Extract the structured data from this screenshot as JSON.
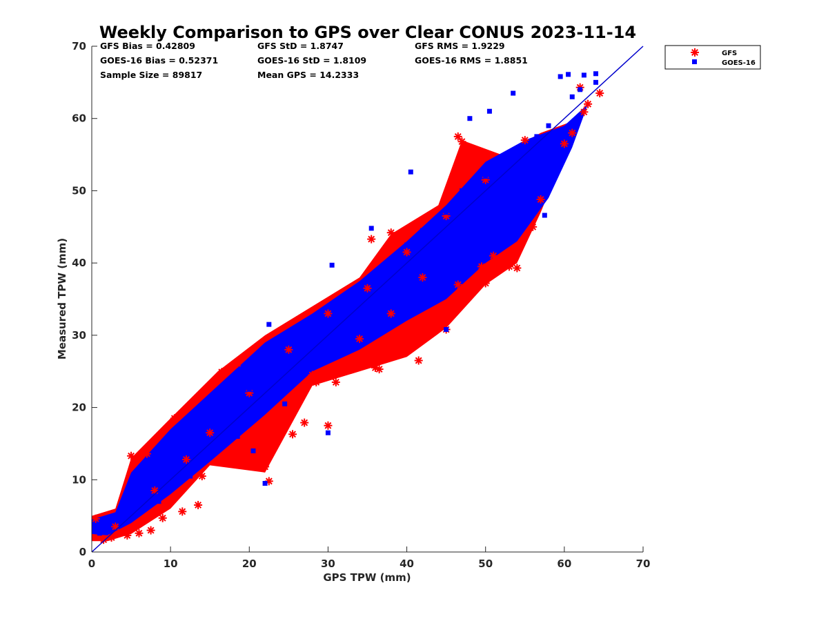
{
  "chart_data": {
    "type": "scatter",
    "title": "Weekly Comparison to GPS over Clear CONUS 2023-11-14",
    "xlabel": "GPS TPW (mm)",
    "ylabel": "Measured TPW (mm)",
    "xlim": [
      0,
      70
    ],
    "ylim": [
      0,
      70
    ],
    "xticks": [
      "0",
      "10",
      "20",
      "30",
      "40",
      "50",
      "60",
      "70"
    ],
    "yticks": [
      "0",
      "10",
      "20",
      "30",
      "40",
      "50",
      "60",
      "70"
    ],
    "grid": false,
    "legend_position": "outside top-right",
    "reference_line": {
      "from": [
        0,
        0
      ],
      "to": [
        70,
        70
      ],
      "color": "#0000cc"
    },
    "stats": {
      "gfs_bias": "GFS Bias = 0.42809",
      "goes_bias": "GOES-16 Bias = 0.52371",
      "sample_size": "Sample Size = 89817",
      "gfs_std": "GFS StD = 1.8747",
      "goes_std": "GOES-16 StD = 1.8109",
      "mean_gps": "Mean GPS = 14.2333",
      "gfs_rms": "GFS RMS = 1.9229",
      "goes_rms": "GOES-16 RMS = 1.8851"
    },
    "series": [
      {
        "name": "GFS",
        "marker": "asterisk",
        "color": "#ff0000",
        "points": [
          [
            0.5,
            4.6
          ],
          [
            1.5,
            1.7
          ],
          [
            2.5,
            2.0
          ],
          [
            4.5,
            2.3
          ],
          [
            5.0,
            13.3
          ],
          [
            6.0,
            2.6
          ],
          [
            7.0,
            13.6
          ],
          [
            7.5,
            3.0
          ],
          [
            9.0,
            4.7
          ],
          [
            10.5,
            18.5
          ],
          [
            11.5,
            5.6
          ],
          [
            13.5,
            6.5
          ],
          [
            16.5,
            24.9
          ],
          [
            18.5,
            26.1
          ],
          [
            20.5,
            12.0
          ],
          [
            22.0,
            11.8
          ],
          [
            22.5,
            9.8
          ],
          [
            25.5,
            16.3
          ],
          [
            27.0,
            17.9
          ],
          [
            28.5,
            23.5
          ],
          [
            30.0,
            17.5
          ],
          [
            31.0,
            23.5
          ],
          [
            33.0,
            25.9
          ],
          [
            35.5,
            27.9
          ],
          [
            36.0,
            25.5
          ],
          [
            36.5,
            25.3
          ],
          [
            37.5,
            27.5
          ],
          [
            40.0,
            29.9
          ],
          [
            41.0,
            28.9
          ],
          [
            41.5,
            26.5
          ],
          [
            43.0,
            31.2
          ],
          [
            45.0,
            30.8
          ],
          [
            46.5,
            37.0
          ],
          [
            47.5,
            36.5
          ],
          [
            50.0,
            37.2
          ],
          [
            49.5,
            39.5
          ],
          [
            51.0,
            41.0
          ],
          [
            52.5,
            40.0
          ],
          [
            53.0,
            39.5
          ],
          [
            54.0,
            39.3
          ],
          [
            56.0,
            45.0
          ],
          [
            57.0,
            48.8
          ],
          [
            46.5,
            57.5
          ],
          [
            47.0,
            56.8
          ],
          [
            38.0,
            44.2
          ],
          [
            35.5,
            43.3
          ],
          [
            60.0,
            56.5
          ],
          [
            61.0,
            58.0
          ],
          [
            62.5,
            60.9
          ],
          [
            63.0,
            62.0
          ],
          [
            64.5,
            63.5
          ],
          [
            62.0,
            64.3
          ],
          [
            30.0,
            33.0
          ],
          [
            25.0,
            28.0
          ],
          [
            20.0,
            22.0
          ],
          [
            15.0,
            16.5
          ],
          [
            12.0,
            12.8
          ],
          [
            8.0,
            8.5
          ],
          [
            3.0,
            3.5
          ],
          [
            35.0,
            36.5
          ],
          [
            40.0,
            41.5
          ],
          [
            45.0,
            46.5
          ],
          [
            50.0,
            51.5
          ],
          [
            55.0,
            57.0
          ],
          [
            42.0,
            38.0
          ],
          [
            38.0,
            33.0
          ],
          [
            34.0,
            29.5
          ],
          [
            28.0,
            24.5
          ],
          [
            24.0,
            20.0
          ],
          [
            18.0,
            14.5
          ],
          [
            14.0,
            10.5
          ],
          [
            10.0,
            7.0
          ]
        ]
      },
      {
        "name": "GOES-16",
        "marker": "square",
        "color": "#0000ff",
        "points": [
          [
            0.5,
            3.5
          ],
          [
            1.0,
            2.6
          ],
          [
            3.0,
            4.4
          ],
          [
            5.0,
            8.0
          ],
          [
            8.0,
            9.5
          ],
          [
            10.0,
            11.5
          ],
          [
            13.0,
            14.0
          ],
          [
            15.0,
            18.0
          ],
          [
            18.0,
            20.0
          ],
          [
            20.0,
            22.5
          ],
          [
            22.5,
            31.5
          ],
          [
            23.0,
            25.0
          ],
          [
            25.0,
            27.0
          ],
          [
            28.0,
            30.0
          ],
          [
            30.0,
            16.5
          ],
          [
            30.0,
            31.5
          ],
          [
            30.5,
            39.7
          ],
          [
            33.0,
            34.5
          ],
          [
            35.5,
            44.8
          ],
          [
            35.0,
            37.5
          ],
          [
            38.0,
            40.0
          ],
          [
            40.0,
            42.5
          ],
          [
            40.5,
            52.6
          ],
          [
            42.0,
            44.5
          ],
          [
            45.0,
            30.8
          ],
          [
            45.0,
            47.0
          ],
          [
            47.0,
            50.0
          ],
          [
            48.0,
            60.0
          ],
          [
            50.0,
            52.0
          ],
          [
            50.5,
            61.0
          ],
          [
            51.5,
            49.0
          ],
          [
            53.5,
            63.5
          ],
          [
            55.0,
            56.0
          ],
          [
            56.5,
            57.5
          ],
          [
            57.5,
            46.6
          ],
          [
            58.0,
            59.0
          ],
          [
            59.5,
            65.8
          ],
          [
            60.5,
            66.1
          ],
          [
            61.0,
            63.0
          ],
          [
            62.0,
            64.0
          ],
          [
            62.5,
            66.0
          ],
          [
            64.0,
            66.2
          ],
          [
            64.0,
            65.0
          ],
          [
            25.0,
            25.5
          ],
          [
            27.5,
            28.5
          ],
          [
            32.0,
            33.0
          ],
          [
            37.0,
            38.0
          ],
          [
            43.0,
            44.0
          ],
          [
            48.0,
            48.5
          ],
          [
            53.0,
            54.0
          ],
          [
            20.5,
            14.0
          ],
          [
            22.0,
            9.5
          ],
          [
            12.5,
            10.5
          ],
          [
            8.5,
            7.0
          ],
          [
            18.5,
            16.0
          ],
          [
            24.5,
            20.5
          ],
          [
            34.5,
            32.5
          ],
          [
            39.5,
            36.0
          ],
          [
            46.0,
            42.5
          ],
          [
            52.0,
            47.5
          ]
        ]
      }
    ]
  }
}
